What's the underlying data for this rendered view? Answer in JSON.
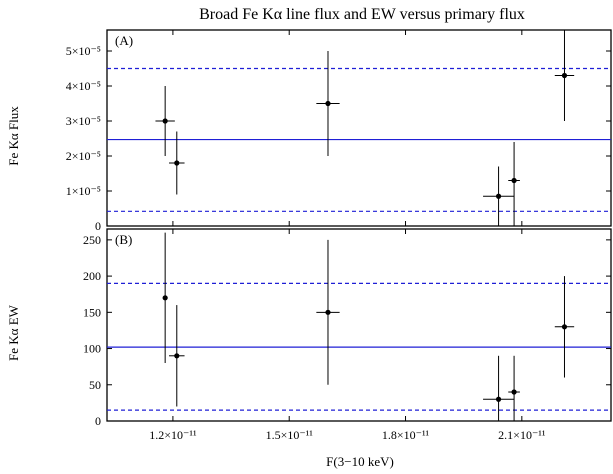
{
  "chart_data": [
    {
      "type": "scatter",
      "title": "Broad Fe Kα line flux and EW versus primary flux",
      "panel_label": "(A)",
      "ylabel": "Fe Kα Flux",
      "xlabel": "",
      "xlim": [
        1.03e-11,
        2.33e-11
      ],
      "ylim": [
        0,
        5.6e-05
      ],
      "yticks": [
        {
          "value": 0,
          "label": "0"
        },
        {
          "value": 1e-05,
          "label": "1×10⁻⁵"
        },
        {
          "value": 2e-05,
          "label": "2×10⁻⁵"
        },
        {
          "value": 3e-05,
          "label": "3×10⁻⁵"
        },
        {
          "value": 4e-05,
          "label": "4×10⁻⁵"
        },
        {
          "value": 5e-05,
          "label": "5×10⁻⁵"
        }
      ],
      "points": [
        {
          "x": 1.18e-11,
          "xerr": 2.5e-13,
          "y": 3e-05,
          "ylo": 2e-05,
          "yhi": 4e-05
        },
        {
          "x": 1.21e-11,
          "xerr": 2e-13,
          "y": 1.8e-05,
          "ylo": 9e-06,
          "yhi": 2.7e-05
        },
        {
          "x": 1.6e-11,
          "xerr": 3e-13,
          "y": 3.5e-05,
          "ylo": 2e-05,
          "yhi": 5e-05
        },
        {
          "x": 2.04e-11,
          "xerr": 4e-13,
          "y": 8.5e-06,
          "ylo": 0.0,
          "yhi": 1.7e-05
        },
        {
          "x": 2.08e-11,
          "xerr": 1.5e-13,
          "y": 1.3e-05,
          "ylo": 0.0,
          "yhi": 2.4e-05
        },
        {
          "x": 2.21e-11,
          "xerr": 2.5e-13,
          "y": 4.3e-05,
          "ylo": 3e-05,
          "yhi": 5.6e-05
        }
      ],
      "hlines": [
        {
          "y": 2.47e-05,
          "style": "solid"
        },
        {
          "y": 4.5e-05,
          "style": "dashed"
        },
        {
          "y": 4.2e-06,
          "style": "dashed"
        }
      ]
    },
    {
      "type": "scatter",
      "panel_label": "(B)",
      "ylabel": "Fe Kα EW",
      "xlabel": "F(3−10 keV)",
      "xlim": [
        1.03e-11,
        2.33e-11
      ],
      "ylim": [
        0,
        265
      ],
      "yticks": [
        {
          "value": 0,
          "label": "0"
        },
        {
          "value": 50,
          "label": "50"
        },
        {
          "value": 100,
          "label": "100"
        },
        {
          "value": 150,
          "label": "150"
        },
        {
          "value": 200,
          "label": "200"
        },
        {
          "value": 250,
          "label": "250"
        }
      ],
      "xticks": [
        {
          "value": 1.2e-11,
          "label": "1.2×10⁻¹¹"
        },
        {
          "value": 1.5e-11,
          "label": "1.5×10⁻¹¹"
        },
        {
          "value": 1.8e-11,
          "label": "1.8×10⁻¹¹"
        },
        {
          "value": 2.1e-11,
          "label": "2.1×10⁻¹¹"
        }
      ],
      "points": [
        {
          "x": 1.18e-11,
          "xerr": 0.0,
          "y": 170,
          "ylo": 80,
          "yhi": 260
        },
        {
          "x": 1.21e-11,
          "xerr": 2e-13,
          "y": 90,
          "ylo": 20,
          "yhi": 160
        },
        {
          "x": 1.6e-11,
          "xerr": 3e-13,
          "y": 150,
          "ylo": 50,
          "yhi": 250
        },
        {
          "x": 2.04e-11,
          "xerr": 4e-13,
          "y": 30,
          "ylo": 0,
          "yhi": 90
        },
        {
          "x": 2.08e-11,
          "xerr": 1.5e-13,
          "y": 40,
          "ylo": 0,
          "yhi": 90
        },
        {
          "x": 2.21e-11,
          "xerr": 2.5e-13,
          "y": 130,
          "ylo": 60,
          "yhi": 200
        }
      ],
      "hlines": [
        {
          "y": 102,
          "style": "solid"
        },
        {
          "y": 190,
          "style": "dashed"
        },
        {
          "y": 15,
          "style": "dashed"
        }
      ]
    }
  ],
  "colors": {
    "line": "#1f1fd6",
    "marker": "#000000",
    "axis": "#000000"
  }
}
